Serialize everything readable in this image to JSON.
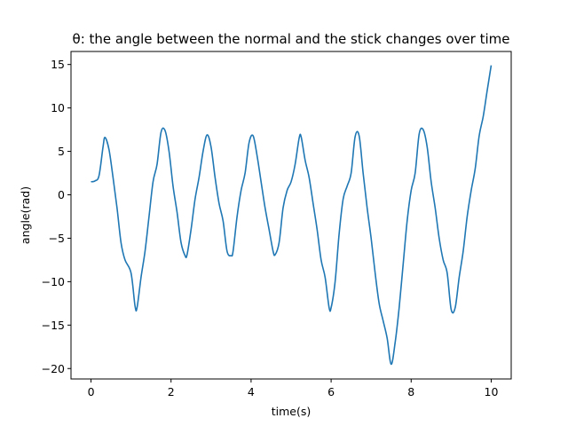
{
  "chart_data": {
    "type": "line",
    "title": "θ: the angle between the normal and the stick changes over time",
    "xlabel": "time(s)",
    "ylabel": "angle(rad)",
    "xlim": [
      -0.5,
      10.5
    ],
    "ylim": [
      -21.2,
      16.5
    ],
    "xticks": [
      0,
      2,
      4,
      6,
      8,
      10
    ],
    "yticks": [
      -20,
      -15,
      -10,
      -5,
      0,
      5,
      10,
      15
    ],
    "grid": false,
    "series": [
      {
        "color": "#1f77b4",
        "x": [
          0,
          0.1,
          0.2,
          0.3,
          0.35,
          0.45,
          0.55,
          0.65,
          0.75,
          0.85,
          1.0,
          1.1,
          1.15,
          1.25,
          1.35,
          1.45,
          1.55,
          1.65,
          1.75,
          1.85,
          1.95,
          2.05,
          2.15,
          2.25,
          2.35,
          2.4,
          2.5,
          2.6,
          2.7,
          2.8,
          2.9,
          3.0,
          3.1,
          3.2,
          3.3,
          3.4,
          3.5,
          3.55,
          3.65,
          3.75,
          3.85,
          3.95,
          4.05,
          4.15,
          4.25,
          4.35,
          4.45,
          4.55,
          4.6,
          4.7,
          4.8,
          4.9,
          5.0,
          5.1,
          5.2,
          5.25,
          5.35,
          5.45,
          5.55,
          5.65,
          5.75,
          5.85,
          5.95,
          6.0,
          6.1,
          6.2,
          6.3,
          6.4,
          6.5,
          6.6,
          6.7,
          6.8,
          6.9,
          7.0,
          7.1,
          7.2,
          7.3,
          7.4,
          7.5,
          7.6,
          7.7,
          7.8,
          7.9,
          8.0,
          8.1,
          8.2,
          8.3,
          8.4,
          8.5,
          8.6,
          8.7,
          8.8,
          8.9,
          9.0,
          9.1,
          9.2,
          9.3,
          9.4,
          9.5,
          9.6,
          9.7,
          9.8,
          9.9,
          10.0
        ],
        "y": [
          1.5,
          1.6,
          2.2,
          5.5,
          6.6,
          5.2,
          2.0,
          -1.5,
          -5.5,
          -7.5,
          -9.0,
          -12.8,
          -13.0,
          -9.5,
          -6.5,
          -2.5,
          1.5,
          3.5,
          7.2,
          7.4,
          5.0,
          1.0,
          -2.0,
          -5.5,
          -7.0,
          -6.9,
          -4.0,
          -0.5,
          2.0,
          5.0,
          6.9,
          5.5,
          2.0,
          -1.0,
          -3.0,
          -6.5,
          -7.0,
          -6.5,
          -2.5,
          0.5,
          2.5,
          6.0,
          6.8,
          4.5,
          1.5,
          -1.5,
          -4.0,
          -6.5,
          -6.9,
          -5.5,
          -1.5,
          0.5,
          1.5,
          3.5,
          6.5,
          6.7,
          4.0,
          2.0,
          -1.0,
          -4.0,
          -7.5,
          -9.5,
          -13.0,
          -13.0,
          -10.0,
          -4.5,
          -0.5,
          1.0,
          2.5,
          6.7,
          6.8,
          2.5,
          -1.5,
          -5.0,
          -9.0,
          -12.5,
          -14.5,
          -16.5,
          -19.5,
          -17.0,
          -13.0,
          -8.0,
          -3.0,
          0.5,
          2.5,
          7.0,
          7.5,
          5.5,
          1.5,
          -1.5,
          -5.0,
          -7.5,
          -9.0,
          -13.2,
          -13.0,
          -9.5,
          -6.5,
          -2.5,
          0.5,
          3.0,
          6.8,
          9.0,
          12.0,
          14.9
        ]
      }
    ]
  }
}
